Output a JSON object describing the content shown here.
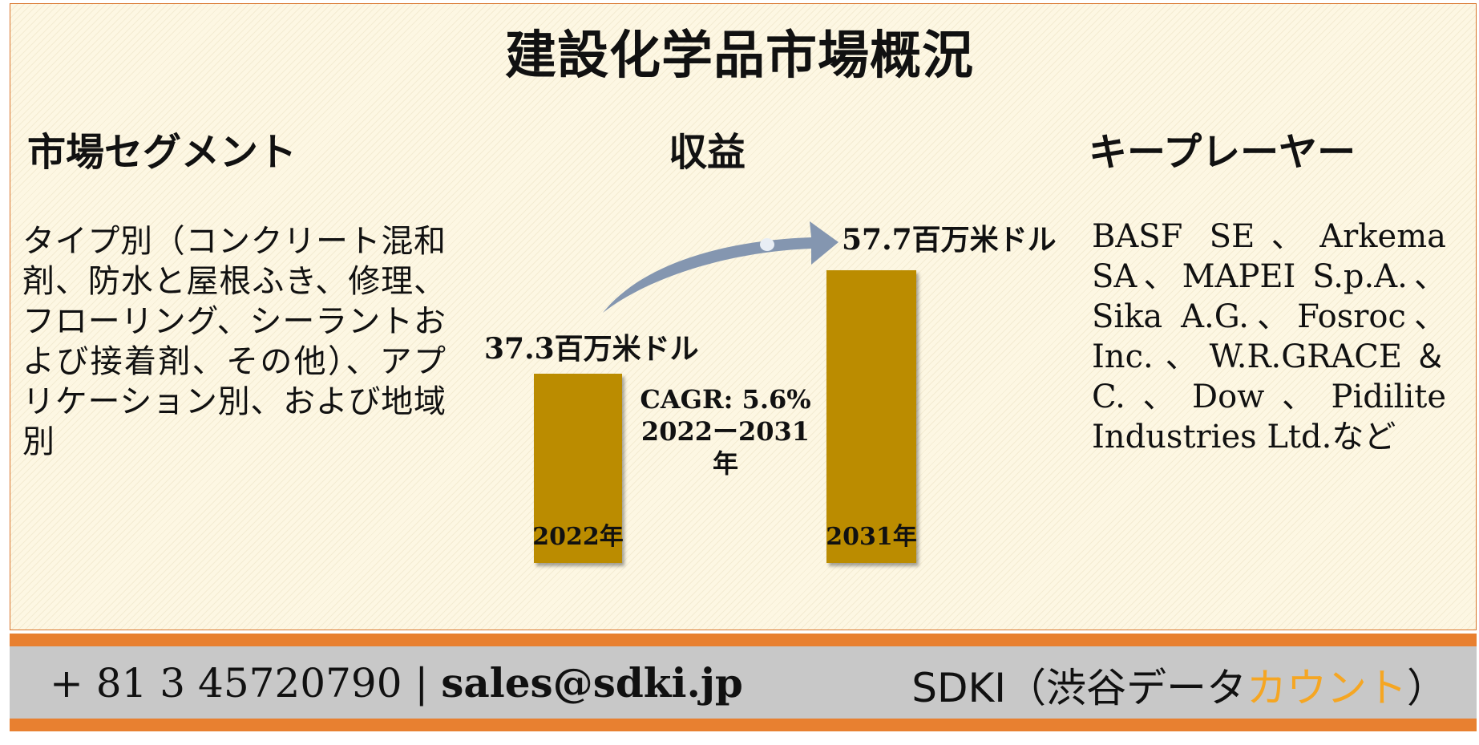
{
  "title": "建設化学品市場概況",
  "headings": {
    "segments": "市場セグメント",
    "revenue": "収益",
    "players": "キープレーヤー"
  },
  "segments_text": "タイプ別（コンクリート混和剤、防水と屋根ふき、修理、フローリング、シーラントおよび接着剤、その他）、アプリケーション別、および地域別",
  "players_text": "BASF SE、Arkema SA、MAPEI S.p.A.、Sika A.G.、Fosroc、Inc.、W.R.GRACE＆C.、Dow、Pidilite Industries Ltd.など",
  "chart_data": {
    "type": "bar",
    "categories": [
      "2022年",
      "2031年"
    ],
    "values": [
      37.3,
      57.7
    ],
    "value_labels": [
      "37.3百万米ドル",
      "57.7百万米ドル"
    ],
    "annotation": [
      "CAGR: 5.6%",
      "2022ー2031年"
    ],
    "colors": {
      "bar": "#bb8c00",
      "arrow": "#8496b0"
    }
  },
  "footer": {
    "phone": "+ 81 3 45720790",
    "separator": "|",
    "email": "sales@sdki.jp",
    "brand_main": "SDKI（渋谷データ",
    "brand_accent": "カウント",
    "brand_end": "）"
  }
}
